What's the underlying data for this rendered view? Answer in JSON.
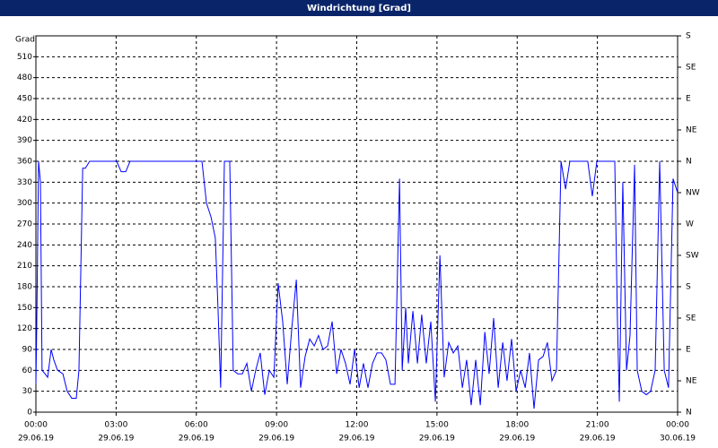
{
  "chart_data": {
    "type": "line",
    "title": "Windrichtung [Grad]",
    "y_label": "Grad",
    "x": [
      0,
      0.03,
      0.1,
      0.17,
      0.23,
      0.34,
      0.44,
      0.57,
      0.67,
      0.81,
      1.01,
      1.17,
      1.34,
      1.51,
      1.61,
      1.75,
      1.85,
      2.01,
      3.02,
      3.19,
      3.36,
      3.52,
      6.21,
      6.38,
      6.55,
      6.71,
      6.81,
      6.91,
      7.05,
      7.25,
      7.38,
      7.55,
      7.72,
      7.89,
      8.06,
      8.22,
      8.39,
      8.56,
      8.73,
      8.9,
      9.06,
      9.23,
      9.4,
      9.57,
      9.74,
      9.9,
      10.07,
      10.24,
      10.41,
      10.57,
      10.74,
      10.91,
      11.08,
      11.25,
      11.41,
      11.58,
      11.75,
      11.92,
      12.09,
      12.25,
      12.42,
      12.59,
      12.76,
      12.93,
      13.09,
      13.26,
      13.43,
      13.6,
      13.7,
      13.83,
      13.93,
      14.1,
      14.27,
      14.43,
      14.6,
      14.77,
      14.94,
      15.11,
      15.27,
      15.44,
      15.61,
      15.78,
      15.95,
      16.11,
      16.28,
      16.45,
      16.62,
      16.79,
      16.95,
      17.12,
      17.29,
      17.46,
      17.62,
      17.79,
      17.96,
      18.13,
      18.3,
      18.46,
      18.63,
      18.8,
      18.97,
      19.13,
      19.3,
      19.47,
      19.64,
      19.81,
      19.97,
      20.64,
      20.81,
      20.98,
      21.65,
      21.75,
      21.82,
      21.95,
      22.09,
      22.22,
      22.39,
      22.49,
      22.66,
      22.83,
      22.99,
      23.16,
      23.33,
      23.5,
      23.66,
      23.83,
      24
    ],
    "values": [
      40,
      120,
      360,
      330,
      60,
      55,
      50,
      90,
      75,
      60,
      55,
      30,
      20,
      20,
      60,
      350,
      350,
      360,
      360,
      345,
      345,
      360,
      360,
      300,
      280,
      250,
      150,
      35,
      360,
      360,
      60,
      55,
      55,
      70,
      30,
      60,
      85,
      25,
      60,
      50,
      185,
      130,
      40,
      120,
      190,
      35,
      80,
      105,
      95,
      110,
      90,
      95,
      130,
      55,
      90,
      70,
      40,
      90,
      35,
      70,
      35,
      70,
      85,
      85,
      75,
      40,
      40,
      335,
      60,
      150,
      70,
      145,
      70,
      140,
      70,
      130,
      15,
      225,
      50,
      100,
      85,
      95,
      35,
      75,
      10,
      75,
      10,
      115,
      55,
      135,
      35,
      100,
      45,
      105,
      30,
      60,
      35,
      85,
      5,
      75,
      80,
      100,
      45,
      60,
      360,
      320,
      360,
      360,
      310,
      360,
      360,
      130,
      15,
      330,
      60,
      110,
      355,
      60,
      30,
      25,
      30,
      60,
      360,
      60,
      35,
      335,
      315
    ],
    "color": "#0000ff",
    "xlim": [
      0,
      24
    ],
    "xticks": [
      {
        "value": 0,
        "label": "00:00"
      },
      {
        "value": 3,
        "label": "03:00"
      },
      {
        "value": 6,
        "label": "06:00"
      },
      {
        "value": 9,
        "label": "09:00"
      },
      {
        "value": 12,
        "label": "12:00"
      },
      {
        "value": 15,
        "label": "15:00"
      },
      {
        "value": 18,
        "label": "18:00"
      },
      {
        "value": 21,
        "label": "21:00"
      },
      {
        "value": 24,
        "label": "00:00"
      }
    ],
    "xtick_dates": [
      "29.06.19",
      "29.06.19",
      "29.06.19",
      "29.06.19",
      "29.06.19",
      "29.06.19",
      "29.06.19",
      "29.06.19",
      "30.06.19"
    ],
    "ylim": [
      0,
      540
    ],
    "yticks": [
      0,
      30,
      60,
      90,
      120,
      150,
      180,
      210,
      240,
      270,
      300,
      330,
      360,
      390,
      420,
      450,
      480,
      510
    ],
    "y2lim": [
      0,
      540
    ],
    "y2ticks": [
      {
        "value": 0,
        "label": "N"
      },
      {
        "value": 45,
        "label": "NE"
      },
      {
        "value": 90,
        "label": "E"
      },
      {
        "value": 135,
        "label": "SE"
      },
      {
        "value": 180,
        "label": "S"
      },
      {
        "value": 225,
        "label": "SW"
      },
      {
        "value": 270,
        "label": "W"
      },
      {
        "value": 315,
        "label": "NW"
      },
      {
        "value": 360,
        "label": "N"
      },
      {
        "value": 405,
        "label": "NE"
      },
      {
        "value": 450,
        "label": "E"
      },
      {
        "value": 495,
        "label": "SE"
      },
      {
        "value": 540,
        "label": "S"
      }
    ],
    "grid": true
  }
}
